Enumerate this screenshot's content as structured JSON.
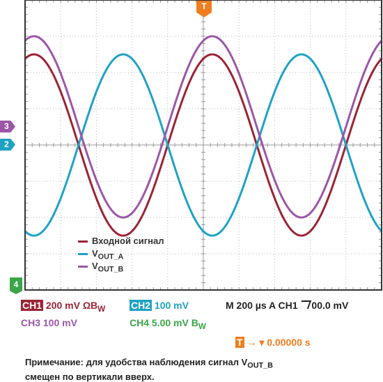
{
  "chart_data": {
    "type": "line",
    "grid": true,
    "grid_divisions": {
      "x": 10,
      "y": 8
    },
    "x_unit": "divisions",
    "ylim": [
      -4,
      4
    ],
    "xlim": [
      0,
      10
    ],
    "series": [
      {
        "name": "Входной сигнал",
        "channel": "CH1",
        "color": "#9b2335",
        "amplitude_div": 2.5,
        "offset_div": 0,
        "period_div": 5.0,
        "phase_div": 0.25
      },
      {
        "name_main": "V",
        "name_sub": "OUT_A",
        "channel": "CH2",
        "color": "#1ea2c4",
        "amplitude_div": 2.5,
        "offset_div": 0,
        "period_div": 5.0,
        "phase_div": 2.75
      },
      {
        "name_main": "V",
        "name_sub": "OUT_B",
        "channel": "CH3",
        "color": "#9b56a8",
        "amplitude_div": 2.5,
        "offset_div": 0.5,
        "period_div": 5.0,
        "phase_div": 0.25
      }
    ]
  },
  "markers": {
    "trigger": "T",
    "ch3": "3",
    "ch2": "2",
    "ch4": "4"
  },
  "colors": {
    "ch1": "#9b2335",
    "ch2": "#1ea2c4",
    "ch3": "#9b56a8",
    "ch4": "#3aa648",
    "trigger": "#f07d1e",
    "grid_dash": "#b8b8b8",
    "border": "#333333"
  },
  "status": {
    "ch1_label": "CH1",
    "ch1_value": "200 mV ΩB",
    "ch1_sub": "W",
    "ch2_label": "CH2",
    "ch2_value": "100 mV",
    "timebase": "M 200 µs A  CH1  ",
    "trigger_level": "00.0 mV",
    "ch3_value": "CH3  100 mV",
    "ch4_value": "CH4  5.00 mV B",
    "ch4_sub": "W",
    "trigger_pos_label": "T",
    "trigger_pos_value": "▾ 0.00000 s"
  },
  "legend": {
    "item1": "Входной сигнал",
    "item2_main": "V",
    "item2_sub": "OUT_A",
    "item3_main": "V",
    "item3_sub": "OUT_B"
  },
  "note": {
    "line1_a": "Примечание: для удобства наблюдения сигнал V",
    "line1_sub": "OUT_B",
    "line2": "смещен по вертикали вверх."
  }
}
